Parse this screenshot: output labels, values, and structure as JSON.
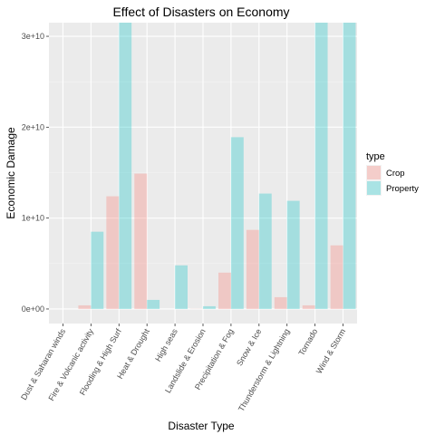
{
  "chart_data": {
    "type": "bar",
    "title": "Effect of Disasters on Economy",
    "xlabel": "Disaster Type",
    "ylabel": "Economic Damage",
    "categories": [
      "Dust & Saharan winds",
      "Fire & Volcanic activity",
      "Flooding & High Surf",
      "Heat & Drought",
      "High seas",
      "Landslide & Erosion",
      "Precipitation & Fog",
      "Snow & Ice",
      "Thunderstorm & Lightning",
      "Tornado",
      "Wind & Storm"
    ],
    "series": [
      {
        "name": "Crop",
        "color": "#F8766D",
        "values": [
          0,
          400000000,
          12400000000,
          14900000000,
          0,
          20000000,
          4000000000,
          8700000000,
          1300000000,
          400000000,
          7000000000
        ]
      },
      {
        "name": "Property",
        "color": "#00BFC4",
        "values": [
          0,
          8500000000,
          31500000000,
          1000000000,
          4800000000,
          300000000,
          18900000000,
          12700000000,
          11900000000,
          31500000000,
          31500000000
        ]
      }
    ],
    "ylim": [
      -1600000000,
      31500000000
    ],
    "yticks": [
      0,
      10000000000,
      20000000000,
      30000000000
    ],
    "ytick_labels": [
      "0e+00",
      "1e+10",
      "2e+10",
      "3e+10"
    ],
    "grid": true,
    "bar_alpha": 0.3,
    "legend": {
      "title": "type",
      "position": "right",
      "entries": [
        "Crop",
        "Property"
      ]
    }
  }
}
